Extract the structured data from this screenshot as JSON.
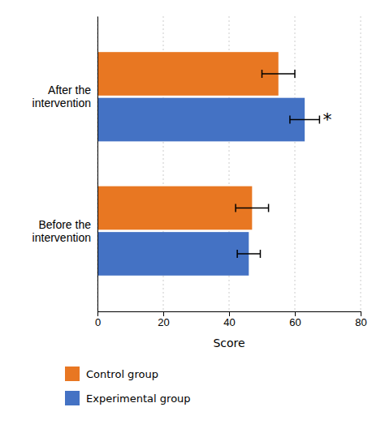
{
  "chart_data": {
    "type": "bar",
    "orientation": "horizontal",
    "categories": [
      "Before the\nintervention",
      "After the\nintervention"
    ],
    "series": [
      {
        "name": "Control group",
        "color": "#E87722",
        "values": [
          47.0,
          55.0
        ],
        "errors": [
          5.0,
          5.0
        ]
      },
      {
        "name": "Experimental group",
        "color": "#4472C4",
        "values": [
          46.0,
          63.0
        ],
        "errors": [
          3.5,
          4.5
        ]
      }
    ],
    "xlabel": "Score",
    "xlim": [
      0,
      80
    ],
    "xticks": [
      0,
      20,
      40,
      60,
      80
    ],
    "grid": true,
    "legend": "bottom",
    "annotations": [
      {
        "text": "*",
        "x": 68.5,
        "category": "After the\nintervention",
        "series": "Experimental group"
      }
    ]
  }
}
